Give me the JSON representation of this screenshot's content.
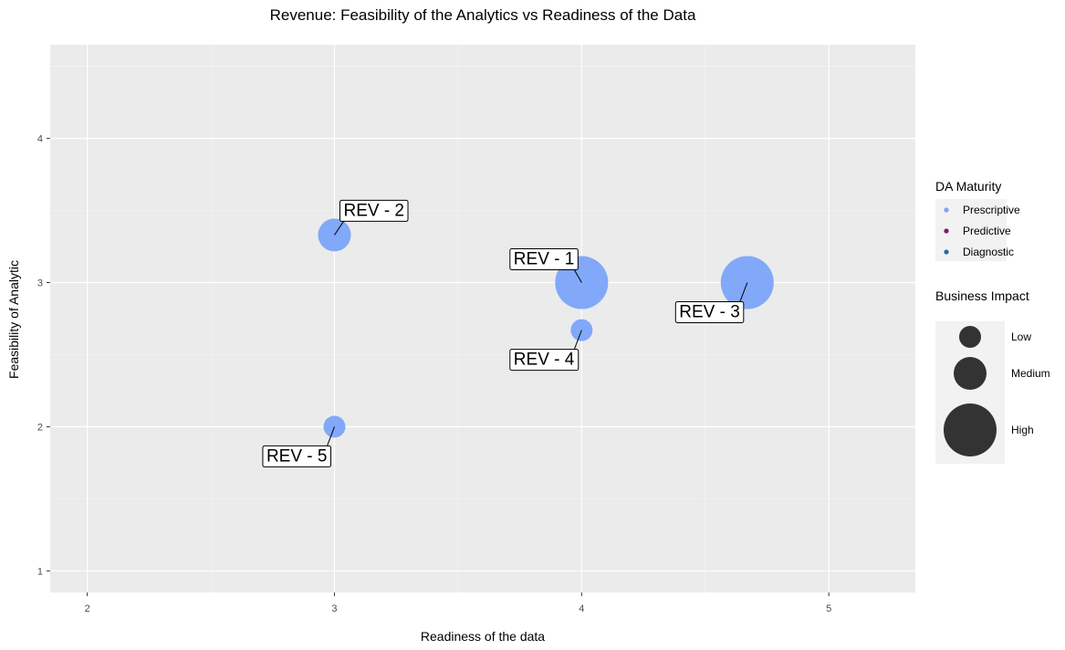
{
  "chart_data": {
    "type": "scatter",
    "title": "Revenue: Feasibility of the Analytics vs Readiness of the Data",
    "xlabel": "Readiness of the data",
    "ylabel": "Feasibility of Analytic",
    "xlim": [
      1.85,
      5.35
    ],
    "ylim": [
      0.85,
      4.65
    ],
    "x_ticks": [
      2,
      3,
      4,
      5
    ],
    "y_ticks": [
      1,
      2,
      3,
      4
    ],
    "grid": true,
    "background": "#ebebeb",
    "points": [
      {
        "label": "REV - 1",
        "x": 4.0,
        "y": 3.0,
        "impact": "High",
        "maturity": "Prescriptive",
        "label_side": "upper-left"
      },
      {
        "label": "REV - 2",
        "x": 3.0,
        "y": 3.33,
        "impact": "Medium",
        "maturity": "Prescriptive",
        "label_side": "upper-right"
      },
      {
        "label": "REV - 3",
        "x": 4.67,
        "y": 3.0,
        "impact": "High",
        "maturity": "Prescriptive",
        "label_side": "lower-left"
      },
      {
        "label": "REV - 4",
        "x": 4.0,
        "y": 2.67,
        "impact": "Low",
        "maturity": "Prescriptive",
        "label_side": "lower-left"
      },
      {
        "label": "REV - 5",
        "x": 3.0,
        "y": 2.0,
        "impact": "Low",
        "maturity": "Prescriptive",
        "label_side": "lower-left"
      }
    ],
    "legend": {
      "placement": "right",
      "color": {
        "title": "DA Maturity",
        "entries": [
          {
            "name": "Prescriptive",
            "color": "#7ba4fa"
          },
          {
            "name": "Predictive",
            "color": "#7a1f5c"
          },
          {
            "name": "Diagnostic",
            "color": "#2a6b9c"
          }
        ]
      },
      "size": {
        "title": "Business Impact",
        "entries": [
          "Low",
          "Medium",
          "High"
        ]
      }
    }
  }
}
